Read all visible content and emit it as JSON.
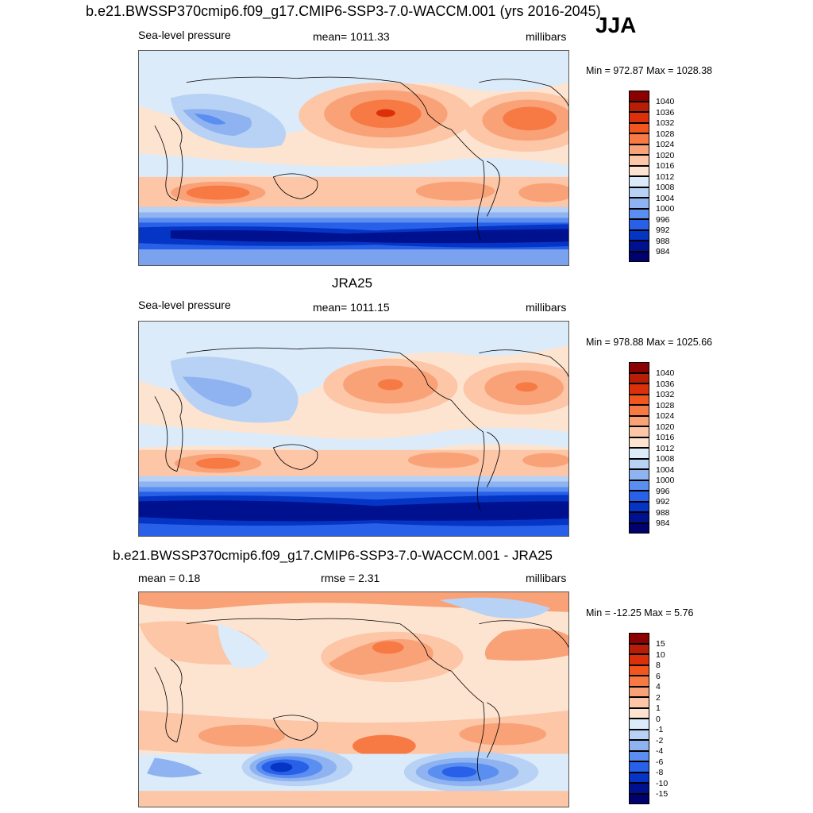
{
  "page": {
    "title": "b.e21.BWSSP370cmip6.f09_g17.CMIP6-SSP3-7.0-WACCM.001 (yrs 2016-2045)",
    "season": "JJA"
  },
  "panels": [
    {
      "header": "",
      "left": "Sea-level pressure",
      "center": "mean= 1011.33",
      "right": "millibars",
      "minmax": "Min = 972.87 Max = 1028.38",
      "colorbar": [
        "1040",
        "1036",
        "1032",
        "1028",
        "1024",
        "1020",
        "1016",
        "1012",
        "1008",
        "1004",
        "1000",
        "996",
        "992",
        "988",
        "984"
      ]
    },
    {
      "header": "JRA25",
      "left": "Sea-level pressure",
      "center": "mean= 1011.15",
      "right": "millibars",
      "minmax": "Min = 978.88 Max = 1025.66",
      "colorbar": [
        "1040",
        "1036",
        "1032",
        "1028",
        "1024",
        "1020",
        "1016",
        "1012",
        "1008",
        "1004",
        "1000",
        "996",
        "992",
        "988",
        "984"
      ]
    },
    {
      "header": "b.e21.BWSSP370cmip6.f09_g17.CMIP6-SSP3-7.0-WACCM.001 - JRA25",
      "left": "mean =   0.18",
      "center": "rmse =   2.31",
      "right": "millibars",
      "minmax": "Min = -12.25 Max =   5.76",
      "colorbar": [
        "15",
        "10",
        "8",
        "6",
        "4",
        "2",
        "1",
        "0",
        "-1",
        "-2",
        "-4",
        "-6",
        "-8",
        "-10",
        "-15"
      ]
    }
  ],
  "colors": {
    "scale": [
      "#8b0000",
      "#b81d06",
      "#db300a",
      "#f2561e",
      "#f77a45",
      "#f9a278",
      "#fcc6a7",
      "#fde4d0",
      "#dcebfa",
      "#b8d2f5",
      "#8fb3f0",
      "#5a8ef0",
      "#2860e8",
      "#0535c4",
      "#00118f",
      "#00006e"
    ]
  }
}
